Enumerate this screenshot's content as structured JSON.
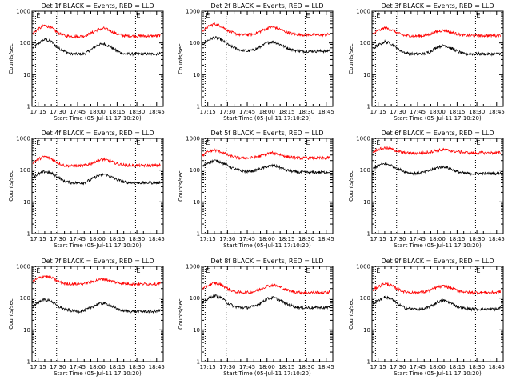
{
  "chart_data": {
    "type": "line",
    "y_scale": "log",
    "ylim": [
      1,
      1000
    ],
    "y_ticks": [
      1,
      10,
      100,
      1000
    ],
    "y_tick_labels": [
      "1",
      "10",
      "100",
      "1000"
    ],
    "ylabel": "Counts/sec",
    "xlabel": "Start Time (05-Jul-11 17:10:20)",
    "xlim": [
      "17:10:20",
      "18:50:00"
    ],
    "x_ticks": [
      "17:15",
      "17:30",
      "17:45",
      "18:00",
      "18:15",
      "18:30",
      "18:45"
    ],
    "x_tick_labels": [
      "17:15",
      "17:30",
      "17:45",
      "18:00",
      "18:15",
      "18:30",
      "18:45"
    ],
    "flag_label": "E",
    "markers": [
      {
        "time": "17:13",
        "label": "E",
        "style": "dotted"
      },
      {
        "time": "17:29",
        "label": "",
        "style": "dotted"
      },
      {
        "time": "18:29",
        "label": "E",
        "style": "dotted"
      }
    ],
    "grid": false,
    "panels": [
      {
        "title": "Det 1f BLACK = Events, RED = LLD",
        "series": [
          {
            "color": "#000000",
            "x": [
              "17:11",
              "17:15",
              "17:20",
              "17:25",
              "17:30",
              "17:35",
              "17:40",
              "17:45",
              "17:50",
              "17:55",
              "18:00",
              "18:05",
              "18:10",
              "18:15",
              "18:20",
              "18:25",
              "18:30",
              "18:35",
              "18:40",
              "18:45",
              "18:48"
            ],
            "values": [
              70,
              95,
              130,
              110,
              70,
              55,
              45,
              45,
              45,
              60,
              85,
              95,
              75,
              55,
              45,
              45,
              45,
              45,
              45,
              45,
              48
            ]
          },
          {
            "color": "#ff0000",
            "x": [
              "17:11",
              "17:15",
              "17:20",
              "17:25",
              "17:30",
              "17:35",
              "17:40",
              "17:45",
              "17:50",
              "17:55",
              "18:00",
              "18:05",
              "18:10",
              "18:15",
              "18:20",
              "18:25",
              "18:30",
              "18:35",
              "18:40",
              "18:45",
              "18:48"
            ],
            "values": [
              200,
              270,
              360,
              300,
              210,
              170,
              160,
              160,
              165,
              200,
              260,
              290,
              240,
              190,
              170,
              165,
              165,
              165,
              165,
              165,
              175
            ]
          }
        ]
      },
      {
        "title": "Det 2f BLACK = Events, RED = LLD",
        "series": [
          {
            "color": "#000000",
            "x": [
              "17:11",
              "17:15",
              "17:20",
              "17:25",
              "17:30",
              "17:35",
              "17:40",
              "17:45",
              "17:50",
              "17:55",
              "18:00",
              "18:05",
              "18:10",
              "18:15",
              "18:20",
              "18:25",
              "18:30",
              "18:35",
              "18:40",
              "18:45",
              "18:48"
            ],
            "values": [
              90,
              120,
              150,
              130,
              90,
              70,
              60,
              55,
              60,
              75,
              100,
              110,
              90,
              70,
              60,
              55,
              55,
              55,
              55,
              55,
              60
            ]
          },
          {
            "color": "#ff0000",
            "x": [
              "17:11",
              "17:15",
              "17:20",
              "17:25",
              "17:30",
              "17:35",
              "17:40",
              "17:45",
              "17:50",
              "17:55",
              "18:00",
              "18:05",
              "18:10",
              "18:15",
              "18:20",
              "18:25",
              "18:30",
              "18:35",
              "18:40",
              "18:45",
              "18:48"
            ],
            "values": [
              240,
              320,
              400,
              340,
              250,
              200,
              180,
              180,
              190,
              230,
              290,
              320,
              270,
              220,
              190,
              180,
              180,
              180,
              180,
              180,
              190
            ]
          }
        ]
      },
      {
        "title": "Det 3f BLACK = Events, RED = LLD",
        "series": [
          {
            "color": "#000000",
            "x": [
              "17:11",
              "17:15",
              "17:20",
              "17:25",
              "17:30",
              "17:35",
              "17:40",
              "17:45",
              "17:50",
              "17:55",
              "18:00",
              "18:05",
              "18:10",
              "18:15",
              "18:20",
              "18:25",
              "18:30",
              "18:35",
              "18:40",
              "18:45",
              "18:48"
            ],
            "values": [
              65,
              85,
              110,
              95,
              65,
              50,
              45,
              45,
              45,
              55,
              75,
              85,
              70,
              55,
              45,
              45,
              45,
              45,
              45,
              45,
              47
            ]
          },
          {
            "color": "#ff0000",
            "x": [
              "17:11",
              "17:15",
              "17:20",
              "17:25",
              "17:30",
              "17:35",
              "17:40",
              "17:45",
              "17:50",
              "17:55",
              "18:00",
              "18:05",
              "18:10",
              "18:15",
              "18:20",
              "18:25",
              "18:30",
              "18:35",
              "18:40",
              "18:45",
              "18:48"
            ],
            "values": [
              190,
              240,
              300,
              260,
              200,
              170,
              165,
              165,
              170,
              190,
              230,
              250,
              220,
              190,
              175,
              170,
              170,
              170,
              170,
              170,
              175
            ]
          }
        ]
      },
      {
        "title": "Det 4f BLACK = Events, RED = LLD",
        "series": [
          {
            "color": "#000000",
            "x": [
              "17:11",
              "17:15",
              "17:20",
              "17:25",
              "17:30",
              "17:35",
              "17:40",
              "17:45",
              "17:50",
              "17:55",
              "18:00",
              "18:05",
              "18:10",
              "18:15",
              "18:20",
              "18:25",
              "18:30",
              "18:35",
              "18:40",
              "18:45",
              "18:48"
            ],
            "values": [
              60,
              75,
              90,
              80,
              60,
              45,
              40,
              40,
              40,
              50,
              65,
              75,
              62,
              50,
              42,
              40,
              40,
              40,
              40,
              40,
              42
            ]
          },
          {
            "color": "#ff0000",
            "x": [
              "17:11",
              "17:15",
              "17:20",
              "17:25",
              "17:30",
              "17:35",
              "17:40",
              "17:45",
              "17:50",
              "17:55",
              "18:00",
              "18:05",
              "18:10",
              "18:15",
              "18:20",
              "18:25",
              "18:30",
              "18:35",
              "18:40",
              "18:45",
              "18:48"
            ],
            "values": [
              170,
              220,
              270,
              230,
              170,
              140,
              135,
              135,
              140,
              160,
              200,
              220,
              190,
              160,
              145,
              140,
              140,
              140,
              140,
              140,
              145
            ]
          }
        ]
      },
      {
        "title": "Det 5f BLACK = Events, RED = LLD",
        "series": [
          {
            "color": "#000000",
            "x": [
              "17:11",
              "17:15",
              "17:20",
              "17:25",
              "17:30",
              "17:35",
              "17:40",
              "17:45",
              "17:50",
              "17:55",
              "18:00",
              "18:05",
              "18:10",
              "18:15",
              "18:20",
              "18:25",
              "18:30",
              "18:35",
              "18:40",
              "18:45",
              "18:48"
            ],
            "values": [
              130,
              170,
              200,
              180,
              140,
              110,
              95,
              90,
              95,
              110,
              130,
              140,
              120,
              100,
              90,
              85,
              85,
              85,
              85,
              85,
              90
            ]
          },
          {
            "color": "#ff0000",
            "x": [
              "17:11",
              "17:15",
              "17:20",
              "17:25",
              "17:30",
              "17:35",
              "17:40",
              "17:45",
              "17:50",
              "17:55",
              "18:00",
              "18:05",
              "18:10",
              "18:15",
              "18:20",
              "18:25",
              "18:30",
              "18:35",
              "18:40",
              "18:45",
              "18:48"
            ],
            "values": [
              290,
              370,
              430,
              380,
              300,
              260,
              240,
              240,
              250,
              280,
              330,
              350,
              310,
              270,
              250,
              240,
              240,
              240,
              240,
              240,
              250
            ]
          }
        ]
      },
      {
        "title": "Det 6f BLACK = Events, RED = LLD",
        "series": [
          {
            "color": "#000000",
            "x": [
              "17:11",
              "17:15",
              "17:20",
              "17:25",
              "17:30",
              "17:35",
              "17:40",
              "17:45",
              "17:50",
              "17:55",
              "18:00",
              "18:05",
              "18:10",
              "18:15",
              "18:20",
              "18:25",
              "18:30",
              "18:35",
              "18:40",
              "18:45",
              "18:48"
            ],
            "values": [
              110,
              140,
              160,
              140,
              110,
              90,
              80,
              80,
              85,
              100,
              120,
              130,
              110,
              90,
              80,
              78,
              78,
              78,
              78,
              78,
              82
            ]
          },
          {
            "color": "#ff0000",
            "x": [
              "17:11",
              "17:15",
              "17:20",
              "17:25",
              "17:30",
              "17:35",
              "17:40",
              "17:45",
              "17:50",
              "17:55",
              "18:00",
              "18:05",
              "18:10",
              "18:15",
              "18:20",
              "18:25",
              "18:30",
              "18:35",
              "18:40",
              "18:45",
              "18:48"
            ],
            "values": [
              380,
              450,
              500,
              460,
              390,
              350,
              340,
              340,
              350,
              380,
              420,
              440,
              410,
              380,
              360,
              350,
              350,
              350,
              350,
              350,
              360
            ]
          }
        ]
      },
      {
        "title": "Det 7f BLACK = Events, RED = LLD",
        "series": [
          {
            "color": "#000000",
            "x": [
              "17:11",
              "17:15",
              "17:20",
              "17:25",
              "17:30",
              "17:35",
              "17:40",
              "17:45",
              "17:50",
              "17:55",
              "18:00",
              "18:05",
              "18:10",
              "18:15",
              "18:20",
              "18:25",
              "18:30",
              "18:35",
              "18:40",
              "18:45",
              "18:48"
            ],
            "values": [
              55,
              75,
              90,
              80,
              55,
              45,
              40,
              38,
              40,
              50,
              65,
              70,
              58,
              45,
              40,
              38,
              38,
              38,
              38,
              38,
              42
            ]
          },
          {
            "color": "#ff0000",
            "x": [
              "17:11",
              "17:15",
              "17:20",
              "17:25",
              "17:30",
              "17:35",
              "17:40",
              "17:45",
              "17:50",
              "17:55",
              "18:00",
              "18:05",
              "18:10",
              "18:15",
              "18:20",
              "18:25",
              "18:30",
              "18:35",
              "18:40",
              "18:45",
              "18:48"
            ],
            "values": [
              330,
              420,
              500,
              440,
              340,
              290,
              280,
              280,
              290,
              320,
              370,
              400,
              350,
              310,
              290,
              280,
              280,
              280,
              280,
              280,
              300
            ]
          }
        ]
      },
      {
        "title": "Det 8f BLACK = Events, RED = LLD",
        "series": [
          {
            "color": "#000000",
            "x": [
              "17:11",
              "17:15",
              "17:20",
              "17:25",
              "17:30",
              "17:35",
              "17:40",
              "17:45",
              "17:50",
              "17:55",
              "18:00",
              "18:05",
              "18:10",
              "18:15",
              "18:20",
              "18:25",
              "18:30",
              "18:35",
              "18:40",
              "18:45",
              "18:48"
            ],
            "values": [
              70,
              95,
              120,
              105,
              70,
              55,
              50,
              50,
              55,
              70,
              95,
              105,
              85,
              65,
              55,
              50,
              50,
              50,
              50,
              50,
              55
            ]
          },
          {
            "color": "#ff0000",
            "x": [
              "17:11",
              "17:15",
              "17:20",
              "17:25",
              "17:30",
              "17:35",
              "17:40",
              "17:45",
              "17:50",
              "17:55",
              "18:00",
              "18:05",
              "18:10",
              "18:15",
              "18:20",
              "18:25",
              "18:30",
              "18:35",
              "18:40",
              "18:45",
              "18:48"
            ],
            "values": [
              190,
              250,
              300,
              270,
              200,
              160,
              150,
              150,
              160,
              190,
              240,
              260,
              220,
              180,
              160,
              150,
              150,
              150,
              150,
              150,
              160
            ]
          }
        ]
      },
      {
        "title": "Det 9f BLACK = Events, RED = LLD",
        "series": [
          {
            "color": "#000000",
            "x": [
              "17:11",
              "17:15",
              "17:20",
              "17:25",
              "17:30",
              "17:35",
              "17:40",
              "17:45",
              "17:50",
              "17:55",
              "18:00",
              "18:05",
              "18:10",
              "18:15",
              "18:20",
              "18:25",
              "18:30",
              "18:35",
              "18:40",
              "18:45",
              "18:48"
            ],
            "values": [
              65,
              85,
              110,
              95,
              65,
              50,
              45,
              45,
              45,
              55,
              75,
              85,
              70,
              55,
              48,
              45,
              45,
              45,
              45,
              45,
              50
            ]
          },
          {
            "color": "#ff0000",
            "x": [
              "17:11",
              "17:15",
              "17:20",
              "17:25",
              "17:30",
              "17:35",
              "17:40",
              "17:45",
              "17:50",
              "17:55",
              "18:00",
              "18:05",
              "18:10",
              "18:15",
              "18:20",
              "18:25",
              "18:30",
              "18:35",
              "18:40",
              "18:45",
              "18:48"
            ],
            "values": [
              180,
              230,
              290,
              250,
              190,
              160,
              150,
              150,
              155,
              180,
              220,
              240,
              210,
              175,
              160,
              150,
              150,
              150,
              150,
              150,
              160
            ]
          }
        ]
      }
    ]
  }
}
